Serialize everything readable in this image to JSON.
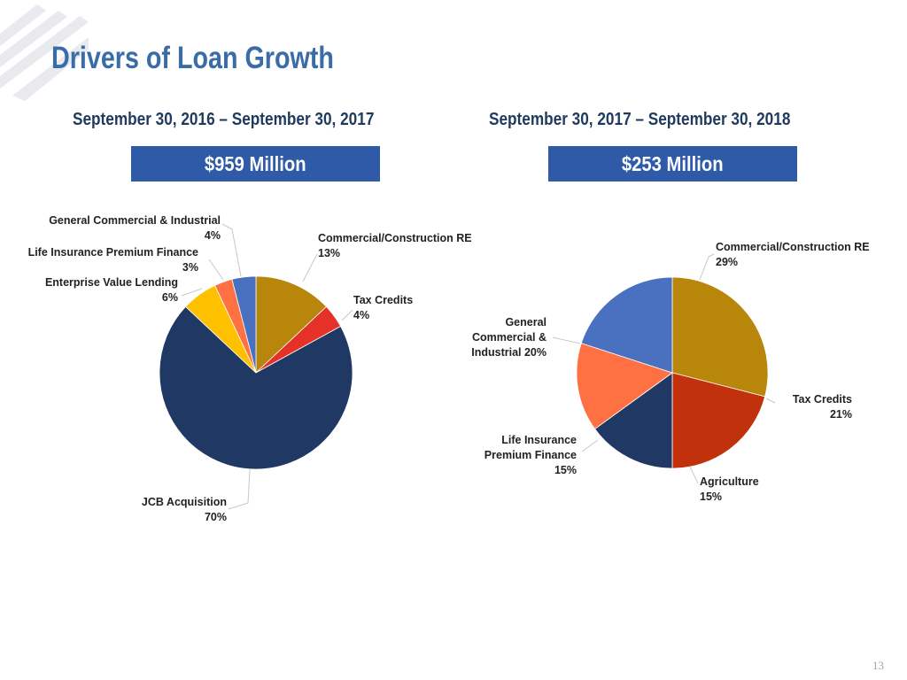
{
  "title": "Drivers of Loan Growth",
  "left": {
    "period": "September 30, 2016 – September 30, 2017",
    "amount": "$959 Million"
  },
  "right": {
    "period": "September 30, 2017 – September 30, 2018",
    "amount": "$253 Million"
  },
  "page_number": "13",
  "colors": {
    "title": "#3a6ca8",
    "banner": "#2e5aa8",
    "subtitle": "#1f3a5f",
    "gold": "#b8860b",
    "red": "#e53127",
    "navy": "#203864",
    "yellow": "#ffc000",
    "orange": "#ff7043",
    "blue": "#4a70c0",
    "darkred": "#c0310c"
  },
  "chart_data": [
    {
      "type": "pie",
      "title": "",
      "slices": [
        {
          "label_lines": [
            "Commercial/Construction RE",
            "13%"
          ],
          "label": "Commercial/Construction RE",
          "value": 13,
          "color": "#b8860b"
        },
        {
          "label_lines": [
            "Tax Credits",
            "4%"
          ],
          "label": "Tax Credits",
          "value": 4,
          "color": "#e53127"
        },
        {
          "label_lines": [
            "JCB Acquisition",
            "70%"
          ],
          "label": "JCB Acquisition",
          "value": 70,
          "color": "#203864"
        },
        {
          "label_lines": [
            "Enterprise Value Lending",
            "6%"
          ],
          "label": "Enterprise Value Lending",
          "value": 6,
          "color": "#ffc000"
        },
        {
          "label_lines": [
            "Life Insurance Premium Finance",
            "3%"
          ],
          "label": "Life Insurance Premium Finance",
          "value": 3,
          "color": "#ff7043"
        },
        {
          "label_lines": [
            "General Commercial & Industrial",
            "4%"
          ],
          "label": "General Commercial & Industrial",
          "value": 4,
          "color": "#4a70c0"
        }
      ]
    },
    {
      "type": "pie",
      "title": "",
      "slices": [
        {
          "label_lines": [
            "Commercial/Construction RE",
            "29%"
          ],
          "label": "Commercial/Construction RE",
          "value": 29,
          "color": "#b8860b"
        },
        {
          "label_lines": [
            "Tax Credits",
            "21%"
          ],
          "label": "Tax Credits",
          "value": 21,
          "color": "#c0310c"
        },
        {
          "label_lines": [
            "Agriculture",
            "15%"
          ],
          "label": "Agriculture",
          "value": 15,
          "color": "#203864"
        },
        {
          "label_lines": [
            "Life Insurance",
            "Premium Finance",
            "15%"
          ],
          "label": "Life Insurance Premium Finance",
          "value": 15,
          "color": "#ff7043"
        },
        {
          "label_lines": [
            "General",
            "Commercial &",
            "Industrial 20%"
          ],
          "label": "General Commercial & Industrial",
          "value": 20,
          "color": "#4a70c0"
        }
      ]
    }
  ]
}
